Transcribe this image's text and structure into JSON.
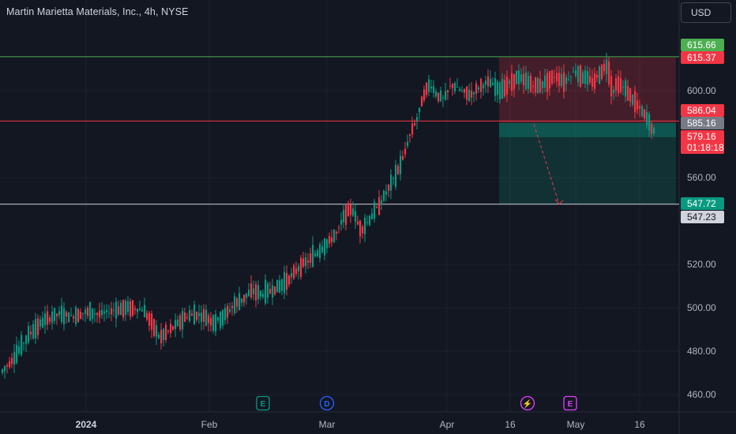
{
  "title": "Martin Marietta Materials, Inc., 4h, NYSE",
  "currency": "USD",
  "colors": {
    "background": "#131722",
    "up": "#089981",
    "down": "#f23645",
    "axis_text": "#b2b5be",
    "grid": "#1e222d"
  },
  "chart_data": {
    "type": "candlestick",
    "title": "Martin Marietta Materials, Inc., 4h, NYSE",
    "ylim": [
      452,
      641
    ],
    "y_ticks": [
      "600.00",
      "560.00",
      "520.00",
      "500.00",
      "480.00",
      "460.00"
    ],
    "x_ticks": [
      {
        "label": "2024",
        "bold": true
      },
      {
        "label": "Feb",
        "bold": false
      },
      {
        "label": "Mar",
        "bold": false
      },
      {
        "label": "Apr",
        "bold": false
      },
      {
        "label": "16",
        "bold": false
      },
      {
        "label": "May",
        "bold": false
      },
      {
        "label": "16",
        "bold": false
      }
    ],
    "trend_points": [
      [
        0,
        470
      ],
      [
        6,
        478
      ],
      [
        12,
        488
      ],
      [
        18,
        494
      ],
      [
        24,
        497
      ],
      [
        30,
        496
      ],
      [
        36,
        498
      ],
      [
        42,
        497
      ],
      [
        48,
        499
      ],
      [
        54,
        500
      ],
      [
        60,
        499
      ],
      [
        64,
        492
      ],
      [
        67,
        486
      ],
      [
        70,
        489
      ],
      [
        74,
        492
      ],
      [
        78,
        496
      ],
      [
        82,
        497
      ],
      [
        86,
        496
      ],
      [
        90,
        493
      ],
      [
        94,
        496
      ],
      [
        98,
        501
      ],
      [
        102,
        504
      ],
      [
        106,
        508
      ],
      [
        110,
        506
      ],
      [
        114,
        508
      ],
      [
        118,
        510
      ],
      [
        122,
        514
      ],
      [
        126,
        519
      ],
      [
        130,
        522
      ],
      [
        134,
        526
      ],
      [
        138,
        530
      ],
      [
        142,
        535
      ],
      [
        145,
        543
      ],
      [
        148,
        546
      ],
      [
        150,
        540
      ],
      [
        152,
        536
      ],
      [
        155,
        540
      ],
      [
        158,
        545
      ],
      [
        161,
        550
      ],
      [
        164,
        556
      ],
      [
        167,
        562
      ],
      [
        170,
        570
      ],
      [
        172,
        578
      ],
      [
        174,
        584
      ],
      [
        176,
        588
      ],
      [
        178,
        598
      ],
      [
        181,
        603
      ],
      [
        184,
        598
      ],
      [
        187,
        596
      ],
      [
        190,
        603
      ],
      [
        194,
        600
      ],
      [
        198,
        598
      ],
      [
        202,
        602
      ],
      [
        206,
        604
      ],
      [
        210,
        600
      ],
      [
        214,
        603
      ],
      [
        218,
        606
      ],
      [
        222,
        604
      ],
      [
        226,
        602
      ],
      [
        230,
        604
      ],
      [
        234,
        607
      ],
      [
        238,
        604
      ],
      [
        242,
        609
      ],
      [
        246,
        606
      ],
      [
        250,
        604
      ],
      [
        254,
        610
      ],
      [
        256,
        612
      ],
      [
        257,
        606
      ],
      [
        258,
        599
      ],
      [
        260,
        604
      ],
      [
        262,
        602
      ],
      [
        264,
        600
      ],
      [
        266,
        597
      ],
      [
        268,
        594
      ],
      [
        270,
        591
      ],
      [
        272,
        588
      ],
      [
        274,
        584
      ],
      [
        276,
        580
      ]
    ],
    "horizontal_levels": [
      {
        "price": 615.66,
        "color": "#4caf50"
      },
      {
        "price": 586.04,
        "color": "#f23645"
      },
      {
        "price": 547.72,
        "color": "#d1d4dc"
      }
    ],
    "position_tool": {
      "stop": 615.37,
      "entry": 585.16,
      "target": 547.72,
      "stop_color": "rgba(242,54,69,0.22)",
      "target_color": "rgba(8,153,129,0.20)"
    },
    "projection": {
      "from_price": 586.04,
      "to_price": 547.72
    },
    "price_labels": [
      {
        "text": "615.66",
        "price": 615.66,
        "bg": "#4caf50",
        "fg": "#ffffff"
      },
      {
        "text": "615.37",
        "price": 615.37,
        "bg": "#f23645",
        "fg": "#ffffff"
      },
      {
        "text": "586.04",
        "price": 586.04,
        "bg": "#f23645",
        "fg": "#ffffff"
      },
      {
        "text": "585.16",
        "price": 585.16,
        "bg": "#787b86",
        "fg": "#ffffff"
      },
      {
        "text": "579.16",
        "price": 579.16,
        "bg": "#f23645",
        "fg": "#ffffff",
        "subtext": "01:18:18"
      },
      {
        "text": "547.72",
        "price": 547.72,
        "bg": "#089981",
        "fg": "#ffffff"
      },
      {
        "text": "547.23",
        "price": 547.23,
        "bg": "#d1d4dc",
        "fg": "#131722"
      }
    ],
    "event_markers": [
      {
        "letter": "E",
        "color": "#089981",
        "shape": "square"
      },
      {
        "letter": "D",
        "color": "#2962ff",
        "shape": "circle"
      },
      {
        "letter": "⚡",
        "color": "#e040fb",
        "shape": "circle"
      },
      {
        "letter": "E",
        "color": "#e040fb",
        "shape": "square"
      }
    ]
  }
}
